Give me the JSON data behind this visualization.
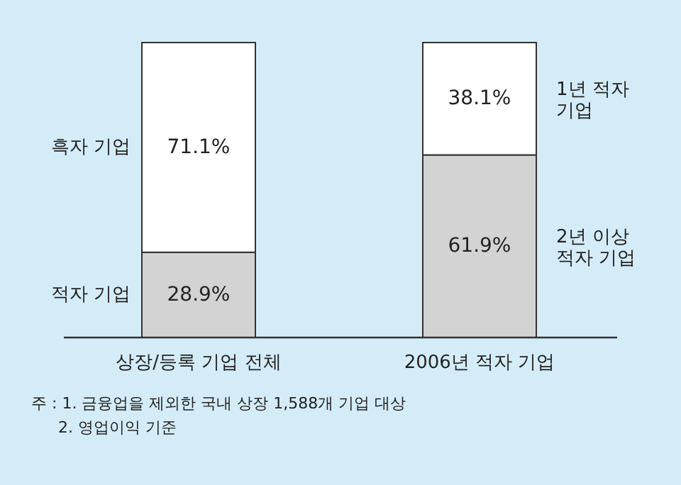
{
  "chart_data": {
    "type": "bar",
    "stacked": true,
    "categories": [
      "상장/등록 기업 전체",
      "2006년 적자 기업"
    ],
    "series": [
      {
        "color": "#d3d3d3",
        "values": [
          28.9,
          61.9
        ],
        "value_labels": [
          "28.9%",
          "61.9%"
        ]
      },
      {
        "color": "#ffffff",
        "values": [
          71.1,
          38.1
        ],
        "value_labels": [
          "71.1%",
          "38.1%"
        ]
      }
    ],
    "annotations": [
      "흑자 기업",
      "적자 기업",
      "1년 적자 기업",
      "2년 이상 적자 기업",
      "주 : 1. 금융업을 제외한 국내 상장 1,588개 기업 대상",
      "2. 영업이익 기준"
    ]
  }
}
